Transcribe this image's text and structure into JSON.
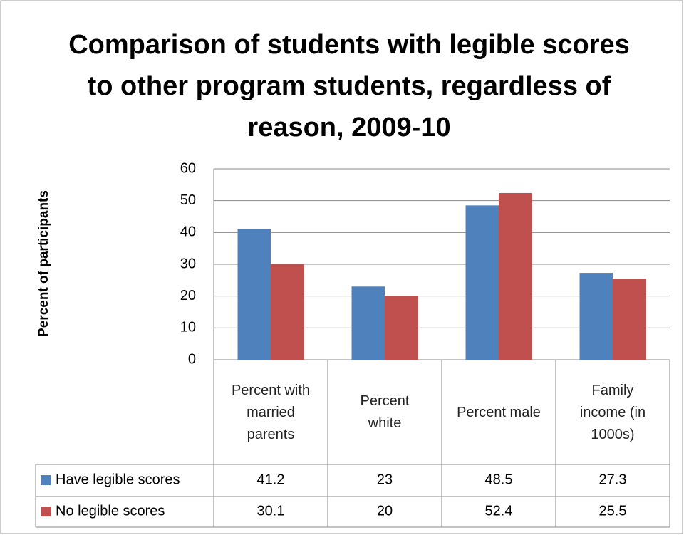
{
  "chart_data": {
    "type": "bar",
    "title": "Comparison of students with legible scores to other program students, regardless of reason, 2009-10",
    "y_label": "Percent of participants",
    "categories": [
      "Percent with married parents",
      "Percent white",
      "Percent male",
      "Family income (in 1000s)"
    ],
    "series": [
      {
        "name": "Have legible scores",
        "color": "#4f81bd",
        "values": [
          41.2,
          23,
          48.5,
          27.3
        ]
      },
      {
        "name": "No legible scores",
        "color": "#c0504d",
        "values": [
          30.1,
          20,
          52.4,
          25.5
        ]
      }
    ],
    "ylim": [
      0,
      60
    ],
    "yticks": [
      0,
      10,
      20,
      30,
      40,
      50,
      60
    ],
    "grid": true
  }
}
